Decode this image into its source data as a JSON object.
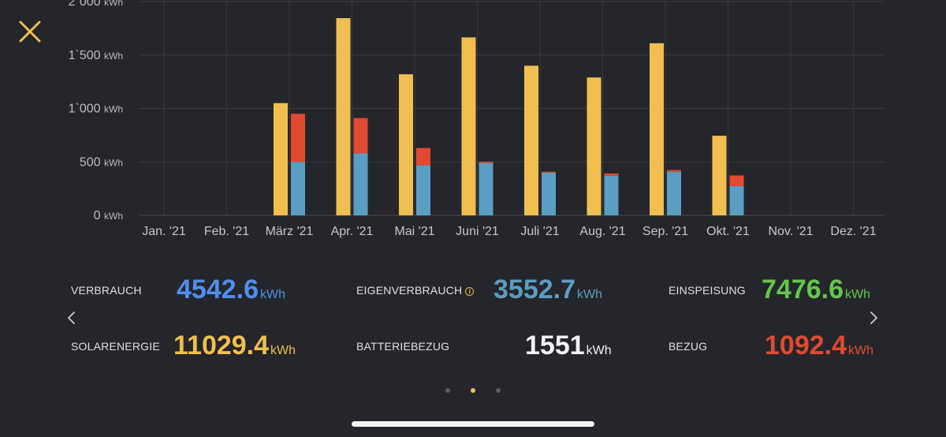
{
  "colors": {
    "solar": "#f0bf4f",
    "battery": "#e24a30",
    "self": "#5b9ec4",
    "consumption": "#4f8ff0",
    "feed_in": "#62c84a",
    "white": "#f2f2f2",
    "grid": "#3a3b40"
  },
  "icons": {
    "close": "close-icon",
    "prev": "chevron-left-icon",
    "next": "chevron-right-icon",
    "info": "info-icon"
  },
  "chart_data": {
    "type": "bar",
    "categories": [
      "Jan. '21",
      "Feb. '21",
      "März '21",
      "Apr. '21",
      "Mai '21",
      "Juni '21",
      "Juli '21",
      "Aug. '21",
      "Sep. '21",
      "Okt. '21",
      "Nov. '21",
      "Dez. '21"
    ],
    "y_ticks": [
      "0 kWh",
      "500 kWh",
      "1`000 kWh",
      "1`500 kWh",
      "2`000 kWh"
    ],
    "ylim": [
      0,
      2000
    ],
    "grid": true,
    "series": [
      {
        "color": "#f0bf4f",
        "values": [
          0,
          0,
          1050,
          1845,
          1320,
          1665,
          1400,
          1290,
          1610,
          745,
          0,
          0
        ]
      },
      {
        "color": "#5b9ec4",
        "stack": "b",
        "values": [
          0,
          0,
          500,
          580,
          468,
          490,
          398,
          370,
          408,
          275,
          0,
          0
        ]
      },
      {
        "color": "#e24a30",
        "stack": "b",
        "values": [
          0,
          0,
          450,
          330,
          162,
          12,
          10,
          22,
          16,
          98,
          0,
          0
        ]
      }
    ]
  },
  "stats": {
    "verbrauch": {
      "label": "VERBRAUCH",
      "value": "4542.6",
      "unit": "kWh"
    },
    "eigenverbrauch": {
      "label": "EIGENVERBRAUCH",
      "value": "3552.7",
      "unit": "kWh"
    },
    "einspeisung": {
      "label": "EINSPEISUNG",
      "value": "7476.6",
      "unit": "kWh"
    },
    "solarenergie": {
      "label": "SOLARENERGIE",
      "value": "11029.4",
      "unit": "kWh"
    },
    "batteriebezug": {
      "label": "BATTERIEBEZUG",
      "value": "1551",
      "unit": "kWh"
    },
    "bezug": {
      "label": "BEZUG",
      "value": "1092.4",
      "unit": "kWh"
    }
  },
  "pager": {
    "count": 3,
    "active": 1
  }
}
